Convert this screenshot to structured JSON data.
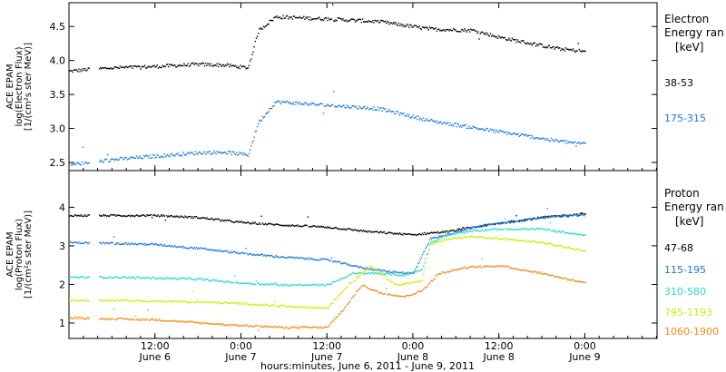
{
  "chart_data": {
    "type": "scatter",
    "xlabel": "hours:minutes, June  6, 2011 - June  9, 2011",
    "x_ticks": [
      {
        "day": 0.5,
        "time": "12:00",
        "date": "June 6"
      },
      {
        "day": 1.0,
        "time": "0:00",
        "date": "June 7"
      },
      {
        "day": 1.5,
        "time": "12:00",
        "date": "June 7"
      },
      {
        "day": 2.0,
        "time": "0:00",
        "date": "June 8"
      },
      {
        "day": 2.5,
        "time": "12:00",
        "date": "June 8"
      },
      {
        "day": 3.0,
        "time": "0:00",
        "date": "June 9"
      }
    ],
    "xlim": [
      0,
      3.42
    ],
    "panels": [
      {
        "id": "electron",
        "ylabel": [
          "ACE EPAM",
          "log(Electron Flux)",
          "[1/(cm²s ster MeV)]"
        ],
        "legend_title": [
          "Electron",
          "Energy ran",
          "[keV]"
        ],
        "ylim": [
          2.38,
          4.85
        ],
        "yticks": [
          2.5,
          3.0,
          3.5,
          4.0,
          4.5
        ],
        "ytick_labels": [
          "2.5",
          "3.0",
          "3.5",
          "4.0",
          "4.5"
        ],
        "series": [
          {
            "name": "38-53",
            "color": "#000000",
            "x": [
              0,
              0.12,
              0.25,
              0.5,
              0.75,
              0.9,
              1.04,
              1.1,
              1.2,
              1.5,
              1.8,
              2.1,
              2.35,
              2.5,
              2.7,
              2.85,
              3.0
            ],
            "y": [
              3.85,
              3.88,
              3.9,
              3.92,
              3.95,
              3.94,
              3.9,
              4.45,
              4.65,
              4.62,
              4.58,
              4.47,
              4.45,
              4.35,
              4.25,
              4.18,
              4.14
            ]
          },
          {
            "name": "175-315",
            "color": "#1a78d8",
            "x": [
              0,
              0.12,
              0.25,
              0.5,
              0.75,
              0.9,
              1.04,
              1.1,
              1.2,
              1.5,
              1.8,
              2.1,
              2.35,
              2.5,
              2.7,
              2.85,
              3.0
            ],
            "y": [
              2.48,
              2.5,
              2.55,
              2.6,
              2.65,
              2.66,
              2.62,
              3.1,
              3.4,
              3.35,
              3.3,
              3.12,
              3.02,
              2.96,
              2.88,
              2.82,
              2.78
            ]
          }
        ]
      },
      {
        "id": "proton",
        "ylabel": [
          "ACE EPAM",
          "log(Proton Flux)",
          "[1/(cm²s ster MeV)]"
        ],
        "legend_title": [
          "Proton",
          "Energy ran",
          "[keV]"
        ],
        "ylim": [
          0.6,
          4.95
        ],
        "yticks": [
          1,
          2,
          3,
          4
        ],
        "ytick_labels": [
          "1",
          "2",
          "3",
          "4"
        ],
        "series": [
          {
            "name": "47-68",
            "color": "#000000",
            "x": [
              0,
              0.25,
              0.5,
              0.75,
              1.0,
              1.25,
              1.5,
              1.75,
              2.0,
              2.1,
              2.2,
              2.35,
              2.5,
              2.75,
              3.0
            ],
            "y": [
              3.8,
              3.8,
              3.8,
              3.75,
              3.62,
              3.55,
              3.5,
              3.38,
              3.3,
              3.35,
              3.38,
              3.5,
              3.6,
              3.75,
              3.85
            ]
          },
          {
            "name": "115-195",
            "color": "#1a78d8",
            "x": [
              0,
              0.25,
              0.5,
              0.75,
              1.0,
              1.25,
              1.5,
              1.7,
              1.85,
              2.0,
              2.1,
              2.2,
              2.35,
              2.5,
              2.75,
              3.0
            ],
            "y": [
              3.1,
              3.08,
              3.05,
              2.95,
              2.82,
              2.72,
              2.65,
              2.45,
              2.35,
              2.3,
              3.2,
              3.3,
              3.5,
              3.6,
              3.75,
              3.82
            ]
          },
          {
            "name": "310-580",
            "color": "#2cd8c8",
            "x": [
              0,
              0.25,
              0.5,
              0.75,
              1.0,
              1.25,
              1.5,
              1.65,
              1.8,
              1.95,
              2.05,
              2.1,
              2.2,
              2.35,
              2.5,
              2.75,
              3.0
            ],
            "y": [
              2.2,
              2.2,
              2.18,
              2.15,
              2.05,
              2.0,
              2.0,
              2.3,
              2.3,
              2.25,
              2.4,
              3.1,
              3.3,
              3.4,
              3.45,
              3.45,
              3.28
            ]
          },
          {
            "name": "795-1193",
            "color": "#d2e810",
            "x": [
              0,
              0.25,
              0.5,
              0.75,
              1.0,
              1.25,
              1.5,
              1.6,
              1.75,
              1.9,
              2.05,
              2.1,
              2.2,
              2.35,
              2.5,
              2.75,
              3.0
            ],
            "y": [
              1.6,
              1.6,
              1.58,
              1.56,
              1.52,
              1.45,
              1.4,
              1.9,
              2.5,
              2.0,
              2.1,
              3.05,
              3.2,
              3.25,
              3.2,
              3.1,
              2.88
            ]
          },
          {
            "name": "1060-1900",
            "color": "#f08c1a",
            "x": [
              0,
              0.25,
              0.5,
              0.75,
              1.0,
              1.25,
              1.5,
              1.6,
              1.7,
              1.8,
              1.95,
              2.05,
              2.15,
              2.3,
              2.5,
              2.75,
              3.0
            ],
            "y": [
              1.15,
              1.12,
              1.1,
              1.02,
              0.95,
              0.9,
              0.9,
              1.4,
              2.0,
              1.8,
              1.7,
              1.85,
              2.3,
              2.45,
              2.5,
              2.3,
              2.05
            ]
          }
        ]
      }
    ]
  }
}
